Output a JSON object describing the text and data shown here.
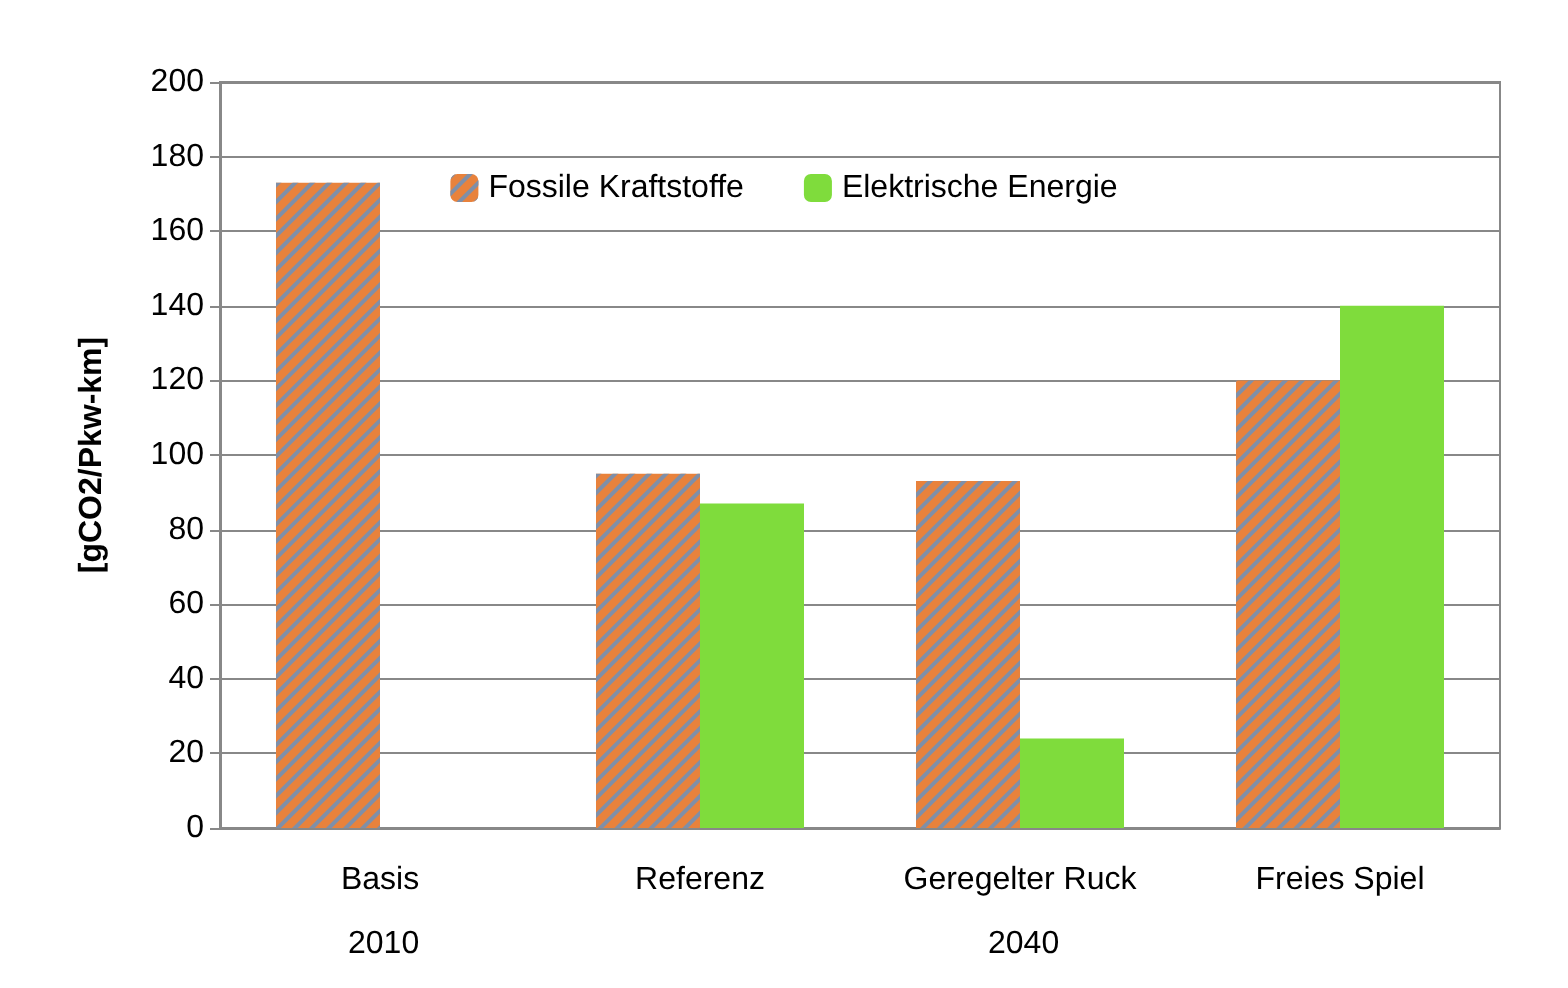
{
  "chart_data": {
    "type": "bar",
    "ylabel": "[gCO2/Pkw-km]",
    "categories": [
      "Basis",
      "Referenz",
      "Geregelter Ruck",
      "Freies Spiel"
    ],
    "series": [
      {
        "name": "Fossile Kraftstoffe",
        "color": "#e8823c",
        "values": [
          173,
          95,
          93,
          120
        ]
      },
      {
        "name": "Elektrische Energie",
        "color": "#7fdc3c",
        "values": [
          null,
          87,
          24,
          140
        ]
      }
    ],
    "ylim": [
      0,
      200
    ],
    "yticks": [
      0,
      20,
      40,
      60,
      80,
      100,
      120,
      140,
      160,
      180,
      200
    ],
    "grid": "y",
    "legend": "top",
    "annotations": [
      "2010",
      "2040"
    ]
  }
}
